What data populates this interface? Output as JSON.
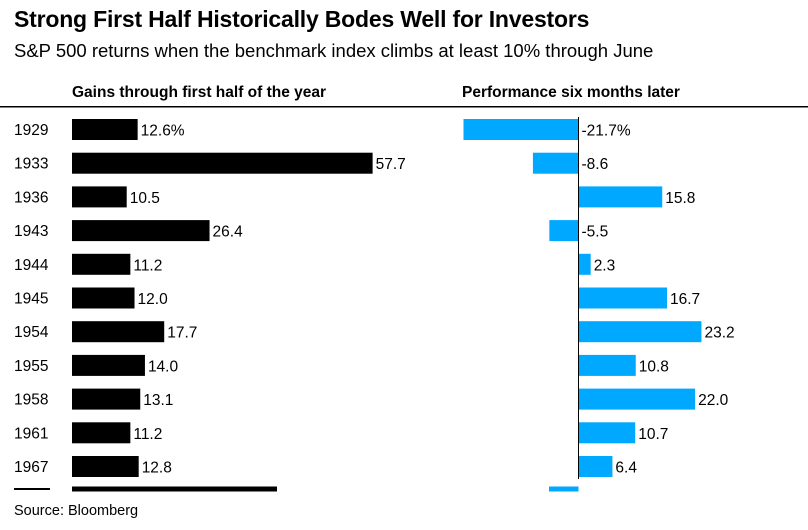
{
  "title": "Strong First Half Historically Bodes Well for Investors",
  "subtitle": "S&P 500 returns when the benchmark index climbs at least 10% through June",
  "source": "Source: Bloomberg",
  "colors": {
    "left_bar": "#000000",
    "right_bar": "#00a8ff",
    "text": "#000000",
    "grid": "#000000"
  },
  "chart_data": {
    "type": "bar",
    "orientation": "horizontal",
    "categories": [
      "1929",
      "1933",
      "1936",
      "1943",
      "1944",
      "1945",
      "1954",
      "1955",
      "1958",
      "1961",
      "1967"
    ],
    "series": [
      {
        "name": "Gains through first half of the year",
        "values": [
          12.6,
          57.7,
          10.5,
          26.4,
          11.2,
          12.0,
          17.7,
          14.0,
          13.1,
          11.2,
          12.8
        ],
        "labels": [
          "12.6%",
          "57.7",
          "10.5",
          "26.4",
          "11.2",
          "12.0",
          "17.7",
          "14.0",
          "13.1",
          "11.2",
          "12.8"
        ]
      },
      {
        "name": "Performance six months later",
        "values": [
          -21.7,
          -8.6,
          15.8,
          -5.5,
          2.3,
          16.7,
          23.2,
          10.8,
          22.0,
          10.7,
          6.4
        ],
        "labels": [
          "-21.7%",
          "-8.6",
          "15.8",
          "-5.5",
          "2.3",
          "16.7",
          "23.2",
          "10.8",
          "22.0",
          "10.7",
          "6.4"
        ]
      }
    ],
    "grid": false,
    "legend": "none"
  }
}
